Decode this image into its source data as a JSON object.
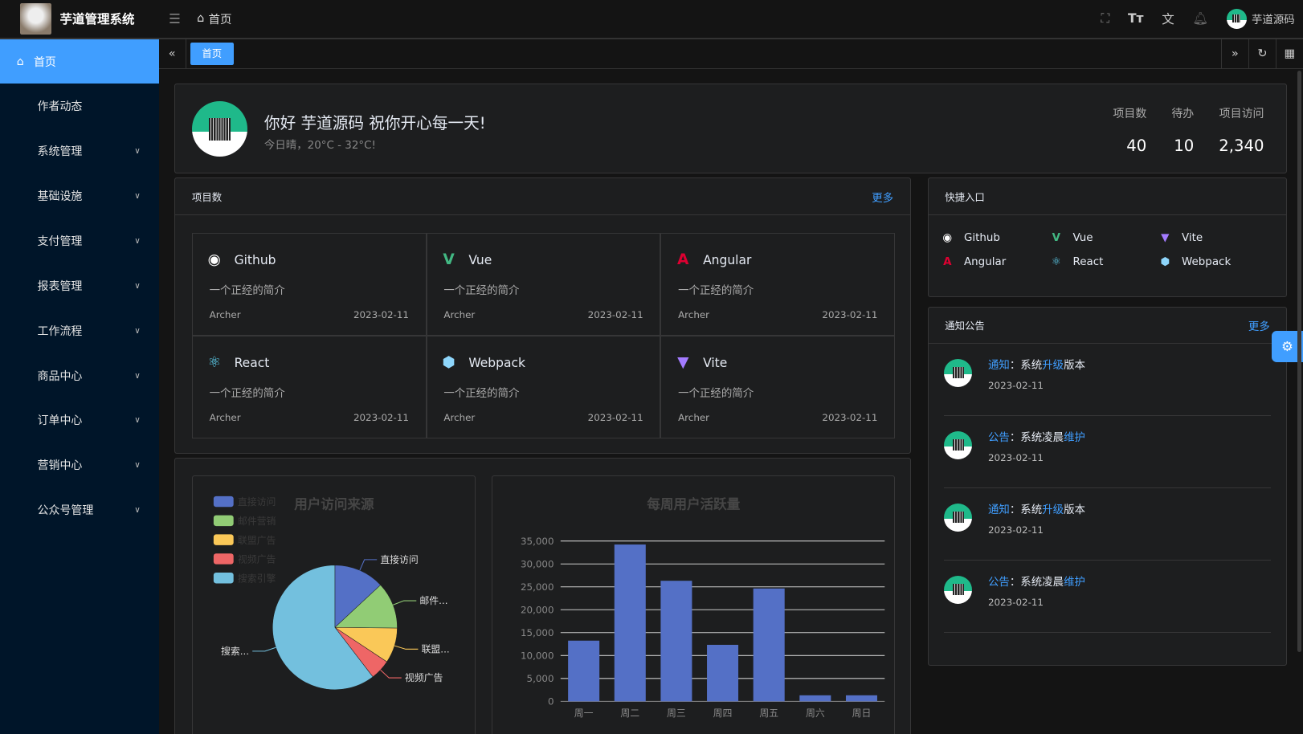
{
  "header": {
    "app_title": "芋道管理系统",
    "breadcrumb": "首页",
    "user_name": "芋道源码",
    "icons": [
      "menu-fold-icon",
      "home-icon",
      "fullscreen-icon",
      "font-size-icon",
      "translate-icon",
      "bell-icon"
    ]
  },
  "sidebar": {
    "items": [
      {
        "label": "首页",
        "active": true
      },
      {
        "label": "作者动态"
      },
      {
        "label": "系统管理",
        "expandable": true
      },
      {
        "label": "基础设施",
        "expandable": true
      },
      {
        "label": "支付管理",
        "expandable": true
      },
      {
        "label": "报表管理",
        "expandable": true
      },
      {
        "label": "工作流程",
        "expandable": true
      },
      {
        "label": "商品中心",
        "expandable": true
      },
      {
        "label": "订单中心",
        "expandable": true
      },
      {
        "label": "营销中心",
        "expandable": true
      },
      {
        "label": "公众号管理",
        "expandable": true
      }
    ]
  },
  "tabs": {
    "items": [
      "首页"
    ]
  },
  "welcome": {
    "greeting": "你好 芋道源码 祝你开心每一天!",
    "weather": "今日晴，20°C - 32°C!",
    "stats": [
      {
        "label": "项目数",
        "value": "40"
      },
      {
        "label": "待办",
        "value": "10"
      },
      {
        "label": "项目访问",
        "value": "2,340"
      }
    ]
  },
  "projects": {
    "title": "项目数",
    "more": "更多",
    "items": [
      {
        "name": "Github",
        "desc": "一个正经的简介",
        "author": "Archer",
        "date": "2023-02-11",
        "icon": "github-icon",
        "color": "#ffffff"
      },
      {
        "name": "Vue",
        "desc": "一个正经的简介",
        "author": "Archer",
        "date": "2023-02-11",
        "icon": "vue-icon",
        "color": "#42b883"
      },
      {
        "name": "Angular",
        "desc": "一个正经的简介",
        "author": "Archer",
        "date": "2023-02-11",
        "icon": "angular-icon",
        "color": "#dd0031"
      },
      {
        "name": "React",
        "desc": "一个正经的简介",
        "author": "Archer",
        "date": "2023-02-11",
        "icon": "react-icon",
        "color": "#61dafb"
      },
      {
        "name": "Webpack",
        "desc": "一个正经的简介",
        "author": "Archer",
        "date": "2023-02-11",
        "icon": "webpack-icon",
        "color": "#8ed6fb"
      },
      {
        "name": "Vite",
        "desc": "一个正经的简介",
        "author": "Archer",
        "date": "2023-02-11",
        "icon": "vite-icon",
        "color": "#a37bff"
      }
    ]
  },
  "quick": {
    "title": "快捷入口",
    "items": [
      {
        "name": "Github"
      },
      {
        "name": "Vue"
      },
      {
        "name": "Vite"
      },
      {
        "name": "Angular"
      },
      {
        "name": "React"
      },
      {
        "name": "Webpack"
      }
    ]
  },
  "notices": {
    "title": "通知公告",
    "more": "更多",
    "items": [
      {
        "type": "通知",
        "pre": "：系统",
        "hl": "升级",
        "post": "版本",
        "date": "2023-02-11"
      },
      {
        "type": "公告",
        "pre": "：系统凌晨",
        "hl": "维护",
        "post": "",
        "date": "2023-02-11"
      },
      {
        "type": "通知",
        "pre": "：系统",
        "hl": "升级",
        "post": "版本",
        "date": "2023-02-11"
      },
      {
        "type": "公告",
        "pre": "：系统凌晨",
        "hl": "维护",
        "post": "",
        "date": "2023-02-11"
      }
    ]
  },
  "chart_data": [
    {
      "type": "pie",
      "title": "用户访问来源",
      "legend_position": "top-left",
      "categories": [
        "直接访问",
        "邮件营销",
        "联盟广告",
        "视频广告",
        "搜索引擎"
      ],
      "values": [
        335,
        310,
        234,
        135,
        1548
      ],
      "colors": [
        "#5470c6",
        "#91cc75",
        "#fac858",
        "#ee6666",
        "#73c0de"
      ],
      "slice_labels": [
        "直接访问",
        "邮件...",
        "联盟...",
        "视频广告",
        "搜索..."
      ]
    },
    {
      "type": "bar",
      "title": "每周用户活跃量",
      "categories": [
        "周一",
        "周二",
        "周三",
        "周四",
        "周五",
        "周六",
        "周日"
      ],
      "values": [
        13253,
        34235,
        26321,
        12340,
        24643,
        1322,
        1324
      ],
      "ylim": [
        0,
        35000
      ],
      "yticks": [
        "0",
        "5,000",
        "10,000",
        "15,000",
        "20,000",
        "25,000",
        "30,000",
        "35,000"
      ],
      "grid": true,
      "color": "#5470c6"
    }
  ]
}
